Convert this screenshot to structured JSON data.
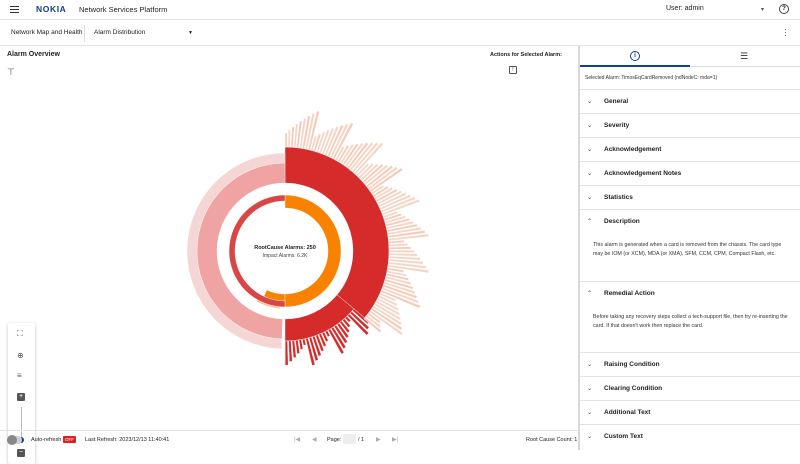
{
  "header": {
    "logo": "NOKIA",
    "app_title": "Network Services Platform",
    "user": "User: admin"
  },
  "subnav": {
    "item1": "Network Map and Health",
    "item2": "Alarm Distribution"
  },
  "overview": {
    "title": "Alarm Overview",
    "actions_label": "Actions for Selected Alarm:",
    "center_line1": "RootCause Alarms: 250",
    "center_line2": "Impact Alarms: 6.2K"
  },
  "footer": {
    "auto_refresh": "Auto-refresh",
    "off_badge": "OFF",
    "last_refresh": "Last Refresh: 2023/12/13 11:40:41",
    "page_label": "Page:",
    "page_total": "/ 1",
    "root_cause_count": "Root Cause Count: 1"
  },
  "panel": {
    "selected_alarm": "Selected Alarm: TimosEqCardRemoved (ndNodeC: mda=1)",
    "sections": {
      "general": "General",
      "severity": "Severity",
      "acknowledgement": "Acknowledgement",
      "ack_notes": "Acknowledgement Notes",
      "statistics": "Statistics",
      "description": "Description",
      "remedial": "Remedial Action",
      "raising": "Raising Condition",
      "clearing": "Clearing Condition",
      "additional": "Additional Text",
      "custom": "Custom Text"
    },
    "description_text": "This alarm is generated when a card is removed from the chassis. The card type may be IOM (or XCM), MDA (or XMA), SFM, CCM, CPM, Compact Flash, etc.",
    "remedial_text": "Before taking any recovery steps collect a tech-support file, then try re-inserting the card. If that doesn't work then replace the card."
  },
  "colors": {
    "accent": "#124191",
    "orange": "#f98200",
    "red": "#d52b2b",
    "light_red": "#f0a3a3",
    "pale": "#f7c9b8"
  }
}
